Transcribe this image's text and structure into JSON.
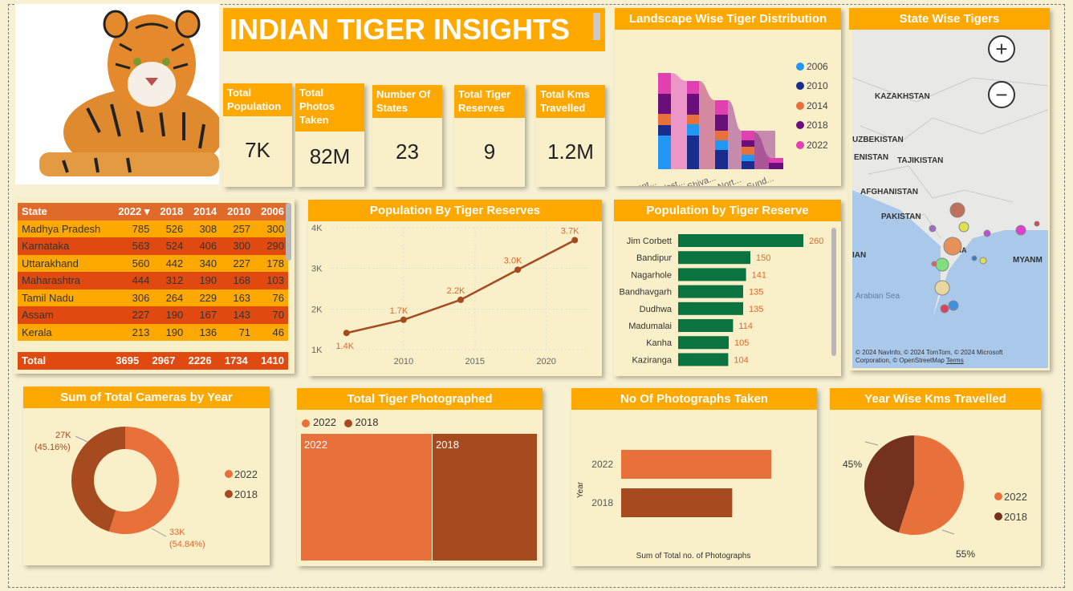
{
  "title": "INDIAN TIGER INSIGHTS",
  "kpis": [
    {
      "label": "Total Population",
      "value": "7K"
    },
    {
      "label": "Total Photos Taken",
      "value": "82M"
    },
    {
      "label": "Number Of States",
      "value": "23"
    },
    {
      "label": "Total Tiger Reserves",
      "value": "9"
    },
    {
      "label": "Total Kms Travelled",
      "value": "1.2M"
    }
  ],
  "state_table": {
    "headers": [
      "State",
      "2022",
      "2018",
      "2014",
      "2010",
      "2006"
    ],
    "rows": [
      [
        "Madhya Pradesh",
        "785",
        "526",
        "308",
        "257",
        "300"
      ],
      [
        "Karnataka",
        "563",
        "524",
        "406",
        "300",
        "290"
      ],
      [
        "Uttarakhand",
        "560",
        "442",
        "340",
        "227",
        "178"
      ],
      [
        "Maharashtra",
        "444",
        "312",
        "190",
        "168",
        "103"
      ],
      [
        "Tamil Nadu",
        "306",
        "264",
        "229",
        "163",
        "76"
      ],
      [
        "Assam",
        "227",
        "190",
        "167",
        "143",
        "70"
      ],
      [
        "Kerala",
        "213",
        "190",
        "136",
        "71",
        "46"
      ]
    ],
    "total": [
      "Total",
      "3695",
      "2967",
      "2226",
      "1734",
      "1410"
    ]
  },
  "landscape_chart": {
    "title": "Landscape Wise Tiger Distribution",
    "legend": [
      {
        "name": "2006",
        "color": "#2196f3"
      },
      {
        "name": "2010",
        "color": "#1a2d8c"
      },
      {
        "name": "2014",
        "color": "#e8703a"
      },
      {
        "name": "2018",
        "color": "#6a0f7a"
      },
      {
        "name": "2022",
        "color": "#e040b0"
      }
    ],
    "xlabels": [
      "Cent...",
      "West...",
      "Shiva...",
      "Nort...",
      "Sund..."
    ]
  },
  "map": {
    "title": "State Wise Tigers",
    "labels": {
      "kazakhstan": "KAZAKHSTAN",
      "uzbekistan": "UZBEKISTAN",
      "turkmenistan": "ENISTAN",
      "tajikistan": "TAJIKISTAN",
      "afghanistan": "AFGHANISTAN",
      "pakistan": "PAKISTAN",
      "iran": "IAN",
      "india": "INDIA",
      "myanmar": "MYANM",
      "arabian_sea": "Arabian Sea"
    },
    "attribution": "© 2024 NavInfo, © 2024 TomTom, © 2024 Microsoft Corporation, © OpenStreetMap",
    "terms": "Terms",
    "zoom_in": "+",
    "zoom_out": "−"
  },
  "line_chart": {
    "chart_data": {
      "type": "line",
      "title": "Population By Tiger Reserves",
      "x": [
        2006,
        2010,
        2014,
        2018,
        2022
      ],
      "y": [
        1410,
        1734,
        2226,
        2967,
        3695
      ],
      "data_labels": [
        "1.4K",
        "1.7K",
        "2.2K",
        "3.0K",
        "3.7K"
      ],
      "yticks": [
        "1K",
        "2K",
        "3K",
        "4K"
      ],
      "xticks": [
        "2010",
        "2015",
        "2020"
      ],
      "ylim": [
        1000,
        4000
      ],
      "xlim": [
        2005,
        2023
      ],
      "color": "#a64b20"
    }
  },
  "reserve_chart": {
    "chart_data": {
      "type": "bar",
      "title": "Population by Tiger Reserve",
      "categories": [
        "Jim Corbett",
        "Bandipur",
        "Nagarhole",
        "Bandhavgarh",
        "Dudhwa",
        "Madumalai",
        "Kanha",
        "Kaziranga"
      ],
      "values": [
        260,
        150,
        141,
        135,
        135,
        114,
        105,
        104
      ],
      "color": "#0a7340",
      "label_color": "#e06a2a"
    }
  },
  "cameras_chart": {
    "chart_data": {
      "type": "pie",
      "title": "Sum of Total Cameras by Year",
      "donut": true,
      "slices": [
        {
          "name": "2022",
          "value": 54.84,
          "label": "33K",
          "pct": "(54.84%)",
          "color": "#e8703a"
        },
        {
          "name": "2018",
          "value": 45.16,
          "label": "27K",
          "pct": "(45.16%)",
          "color": "#a64b20"
        }
      ]
    }
  },
  "treemap_chart": {
    "chart_data": {
      "type": "bar",
      "title": "Total Tiger Photographed",
      "categories": [
        "2022",
        "2018"
      ],
      "colors": [
        "#e8703a",
        "#a64b20"
      ]
    }
  },
  "photos_chart": {
    "chart_data": {
      "type": "bar",
      "title": "No Of Photographs Taken",
      "categories": [
        "2022",
        "2018"
      ],
      "values": [
        1,
        0.74
      ],
      "ylabel": "Year",
      "xlabel": "Sum of Total no. of Photographs",
      "color": "#e8703a",
      "color2": "#a64b20"
    }
  },
  "kms_chart": {
    "chart_data": {
      "type": "pie",
      "title": "Year Wise Kms Travelled",
      "slices": [
        {
          "name": "2022",
          "value": 55,
          "label": "55%",
          "color": "#e8703a"
        },
        {
          "name": "2018",
          "value": 45,
          "label": "45%",
          "color": "#74311d"
        }
      ]
    }
  }
}
